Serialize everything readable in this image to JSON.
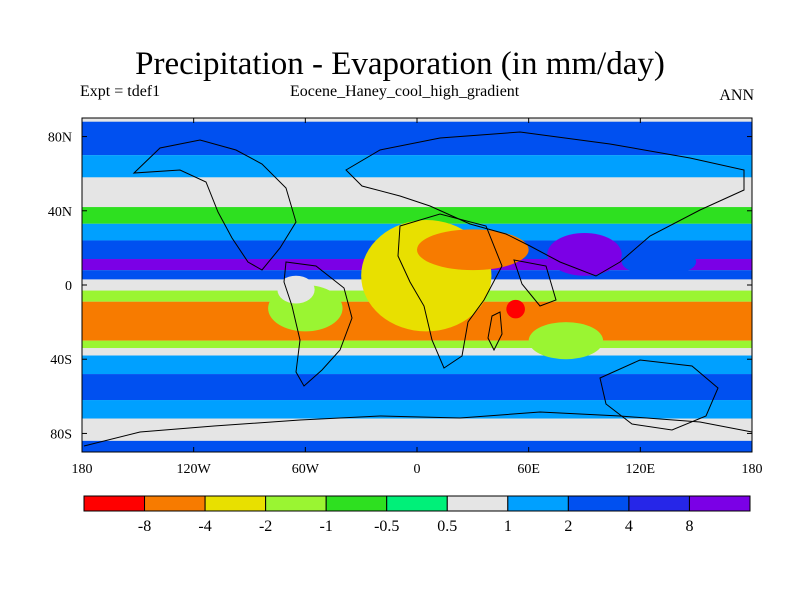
{
  "title": "Precipitation - Evaporation (in mm/day)",
  "subtitle_left": "Expt = tdef1",
  "subtitle_center": "Eocene_Haney_cool_high_gradient",
  "subtitle_right": "ANN",
  "chart_data": {
    "type": "heatmap",
    "projection": "cylindrical equidistant",
    "variable": "Precipitation - Evaporation",
    "units": "mm/day",
    "season": "ANN",
    "xlim": [
      -180,
      180
    ],
    "ylim": [
      -90,
      90
    ],
    "x_ticks": [
      {
        "value": -180,
        "label": "180"
      },
      {
        "value": -120,
        "label": "120W"
      },
      {
        "value": -60,
        "label": "60W"
      },
      {
        "value": 0,
        "label": "0"
      },
      {
        "value": 60,
        "label": "60E"
      },
      {
        "value": 120,
        "label": "120E"
      },
      {
        "value": 180,
        "label": "180"
      }
    ],
    "y_ticks": [
      {
        "value": 80,
        "label": "80N"
      },
      {
        "value": 40,
        "label": "40N"
      },
      {
        "value": 0,
        "label": "0"
      },
      {
        "value": -40,
        "label": "40S"
      },
      {
        "value": -80,
        "label": "80S"
      }
    ],
    "colorbar": {
      "orientation": "horizontal",
      "labels": [
        "-8",
        "-4",
        "-2",
        "-1",
        "-0.5",
        "0.5",
        "1",
        "2",
        "4",
        "8"
      ],
      "colors": [
        "#ff0000",
        "#f77b00",
        "#e8e000",
        "#9af532",
        "#2ee020",
        "#00f079",
        "#e5e5e5",
        "#00a0ff",
        "#0050f0",
        "#2626e8",
        "#7b00e6"
      ]
    },
    "zonal_pattern": [
      {
        "lat": [
          70,
          88
        ],
        "value": 3.0
      },
      {
        "lat": [
          58,
          70
        ],
        "value": 1.5
      },
      {
        "lat": [
          42,
          58
        ],
        "value": 0.7
      },
      {
        "lat": [
          33,
          42
        ],
        "value": -0.7
      },
      {
        "lat": [
          24,
          33
        ],
        "value": 1.5
      },
      {
        "lat": [
          14,
          24
        ],
        "value": 3.0
      },
      {
        "lat": [
          8,
          14
        ],
        "value": 9.0
      },
      {
        "lat": [
          3,
          8
        ],
        "value": 2.5
      },
      {
        "lat": [
          -3,
          3
        ],
        "value": 0.7
      },
      {
        "lat": [
          -9,
          -3
        ],
        "value": -1.5
      },
      {
        "lat": [
          -30,
          -9
        ],
        "value": -5.0
      },
      {
        "lat": [
          -34,
          -30
        ],
        "value": -1.5
      },
      {
        "lat": [
          -38,
          -34
        ],
        "value": 0.8
      },
      {
        "lat": [
          -48,
          -38
        ],
        "value": 1.5
      },
      {
        "lat": [
          -62,
          -48
        ],
        "value": 3.0
      },
      {
        "lat": [
          -72,
          -62
        ],
        "value": 1.5
      },
      {
        "lat": [
          -84,
          -72
        ],
        "value": 0.7
      },
      {
        "lat": [
          -90,
          -84
        ],
        "value": 2.0
      }
    ],
    "regional_anomalies": [
      {
        "lon": [
          -30,
          40
        ],
        "lat": [
          -25,
          35
        ],
        "value": -3.0
      },
      {
        "lon": [
          0,
          60
        ],
        "lat": [
          8,
          30
        ],
        "value": -5.0
      },
      {
        "lon": [
          70,
          110
        ],
        "lat": [
          5,
          28
        ],
        "value": 9.0
      },
      {
        "lon": [
          110,
          150
        ],
        "lat": [
          5,
          20
        ],
        "value": 3.0
      },
      {
        "lon": [
          48,
          58
        ],
        "lat": [
          -18,
          -8
        ],
        "value": -10.0
      },
      {
        "lon": [
          60,
          100
        ],
        "lat": [
          -40,
          -20
        ],
        "value": -1.5
      },
      {
        "lon": [
          -80,
          -40
        ],
        "lat": [
          -25,
          0
        ],
        "value": -1.5
      },
      {
        "lon": [
          -75,
          -55
        ],
        "lat": [
          -10,
          5
        ],
        "value": 0.7
      }
    ]
  }
}
